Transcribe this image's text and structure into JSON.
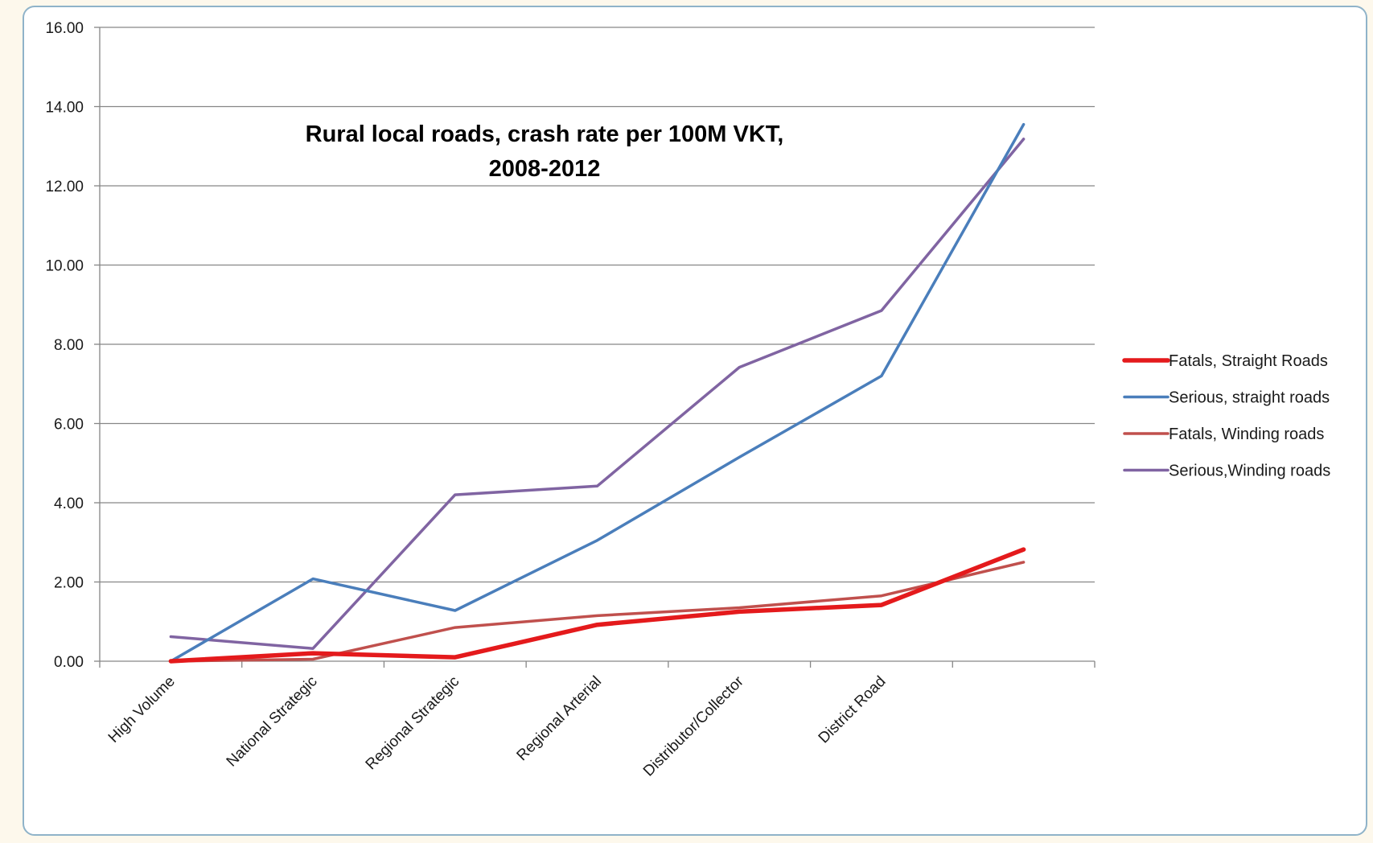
{
  "chart_data": {
    "type": "line",
    "title_lines": [
      "Rural local roads, crash rate per  100M VKT,",
      "2008-2012"
    ],
    "categories": [
      "High Volume",
      "National Strategic",
      "Regional Strategic",
      "Regional Arterial",
      "Distributor/Collector",
      "District Road",
      ""
    ],
    "ylim": [
      0,
      16
    ],
    "yticks": [
      "0.00",
      "2.00",
      "4.00",
      "6.00",
      "8.00",
      "10.00",
      "12.00",
      "14.00",
      "16.00"
    ],
    "grid": true,
    "legend_position": "right",
    "series": [
      {
        "name": "Fatals, Straight Roads",
        "color": "#e41a1c",
        "values": [
          0.0,
          0.2,
          0.1,
          0.92,
          1.25,
          1.42,
          2.82
        ]
      },
      {
        "name": "Serious, straight roads",
        "color": "#4a7ebb",
        "values": [
          0.0,
          2.08,
          1.28,
          3.05,
          5.15,
          7.2,
          13.55
        ]
      },
      {
        "name": "Fatals, Winding roads",
        "color": "#c0504d",
        "values": [
          0.0,
          0.05,
          0.85,
          1.15,
          1.35,
          1.65,
          2.5
        ]
      },
      {
        "name": "Serious,Winding roads",
        "color": "#8064a2",
        "values": [
          0.62,
          0.32,
          4.2,
          4.42,
          7.42,
          8.85,
          13.18
        ]
      }
    ]
  }
}
